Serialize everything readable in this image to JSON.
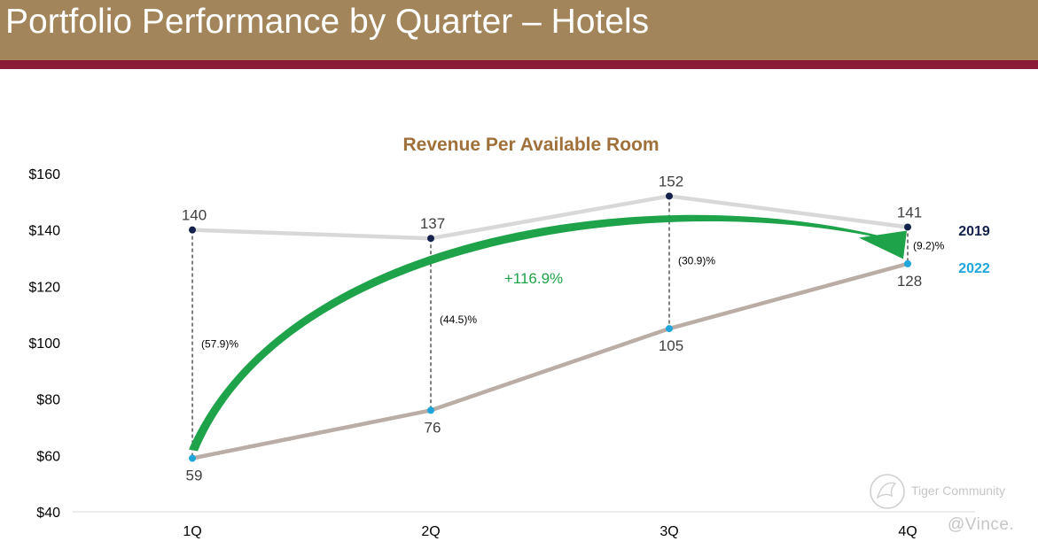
{
  "header": {
    "title": "Portfolio Performance by Quarter – Hotels"
  },
  "chart_data": {
    "type": "line",
    "title": "Revenue Per Available Room",
    "categories": [
      "1Q",
      "2Q",
      "3Q",
      "4Q"
    ],
    "yticks": [
      "$160",
      "$140",
      "$120",
      "$100",
      "$80",
      "$60",
      "$40"
    ],
    "ylim": [
      40,
      160
    ],
    "series": [
      {
        "name": "2019",
        "values": [
          140,
          137,
          152,
          141
        ],
        "line_color": "#d8d8d8",
        "marker_color": "#14214d",
        "label_color": "#14214d",
        "data_labels": [
          "140",
          "137",
          "152",
          "141"
        ]
      },
      {
        "name": "2022",
        "values": [
          59,
          76,
          105,
          128
        ],
        "line_color": "#b9ada6",
        "marker_color": "#1ea6db",
        "label_color": "#1ea6db",
        "data_labels": [
          "59",
          "76",
          "105",
          "128"
        ]
      }
    ],
    "gap_labels": [
      "(57.9)%",
      "(44.5)%",
      "(30.9)%",
      "(9.2)%"
    ],
    "growth_annotation": {
      "text": "+116.9%",
      "color": "#1fa34a"
    },
    "title_color": "#a0703a",
    "grid": false
  },
  "watermark": {
    "brand": "Tiger Community",
    "handle": "@Vince."
  }
}
